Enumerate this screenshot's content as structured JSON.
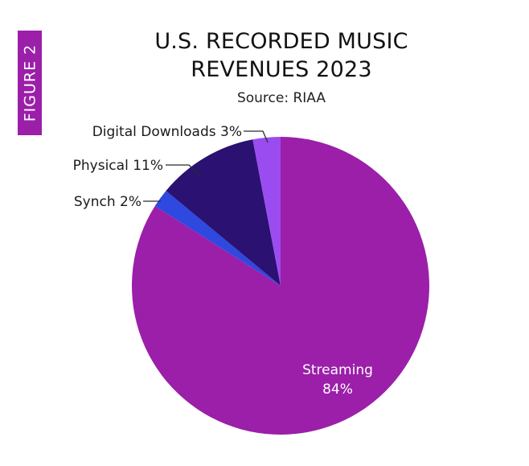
{
  "figure_tag": "FIGURE 2",
  "chart_data": {
    "type": "pie",
    "title": [
      "U.S. RECORDED MUSIC",
      "REVENUES 2023"
    ],
    "subtitle": "Source: RIAA",
    "slices": [
      {
        "key": "streaming",
        "label": "Streaming",
        "value_text": "84%",
        "value": 84,
        "color": "#9b1fa9"
      },
      {
        "key": "synch",
        "label": "Synch",
        "value_text": "2%",
        "value": 2,
        "color": "#2e48e0"
      },
      {
        "key": "physical",
        "label": "Physical",
        "value_text": "11%",
        "value": 11,
        "color": "#2a1172"
      },
      {
        "key": "digital_downloads",
        "label": "Digital Downloads",
        "value_text": "3%",
        "value": 3,
        "color": "#9b4cf0"
      }
    ]
  }
}
